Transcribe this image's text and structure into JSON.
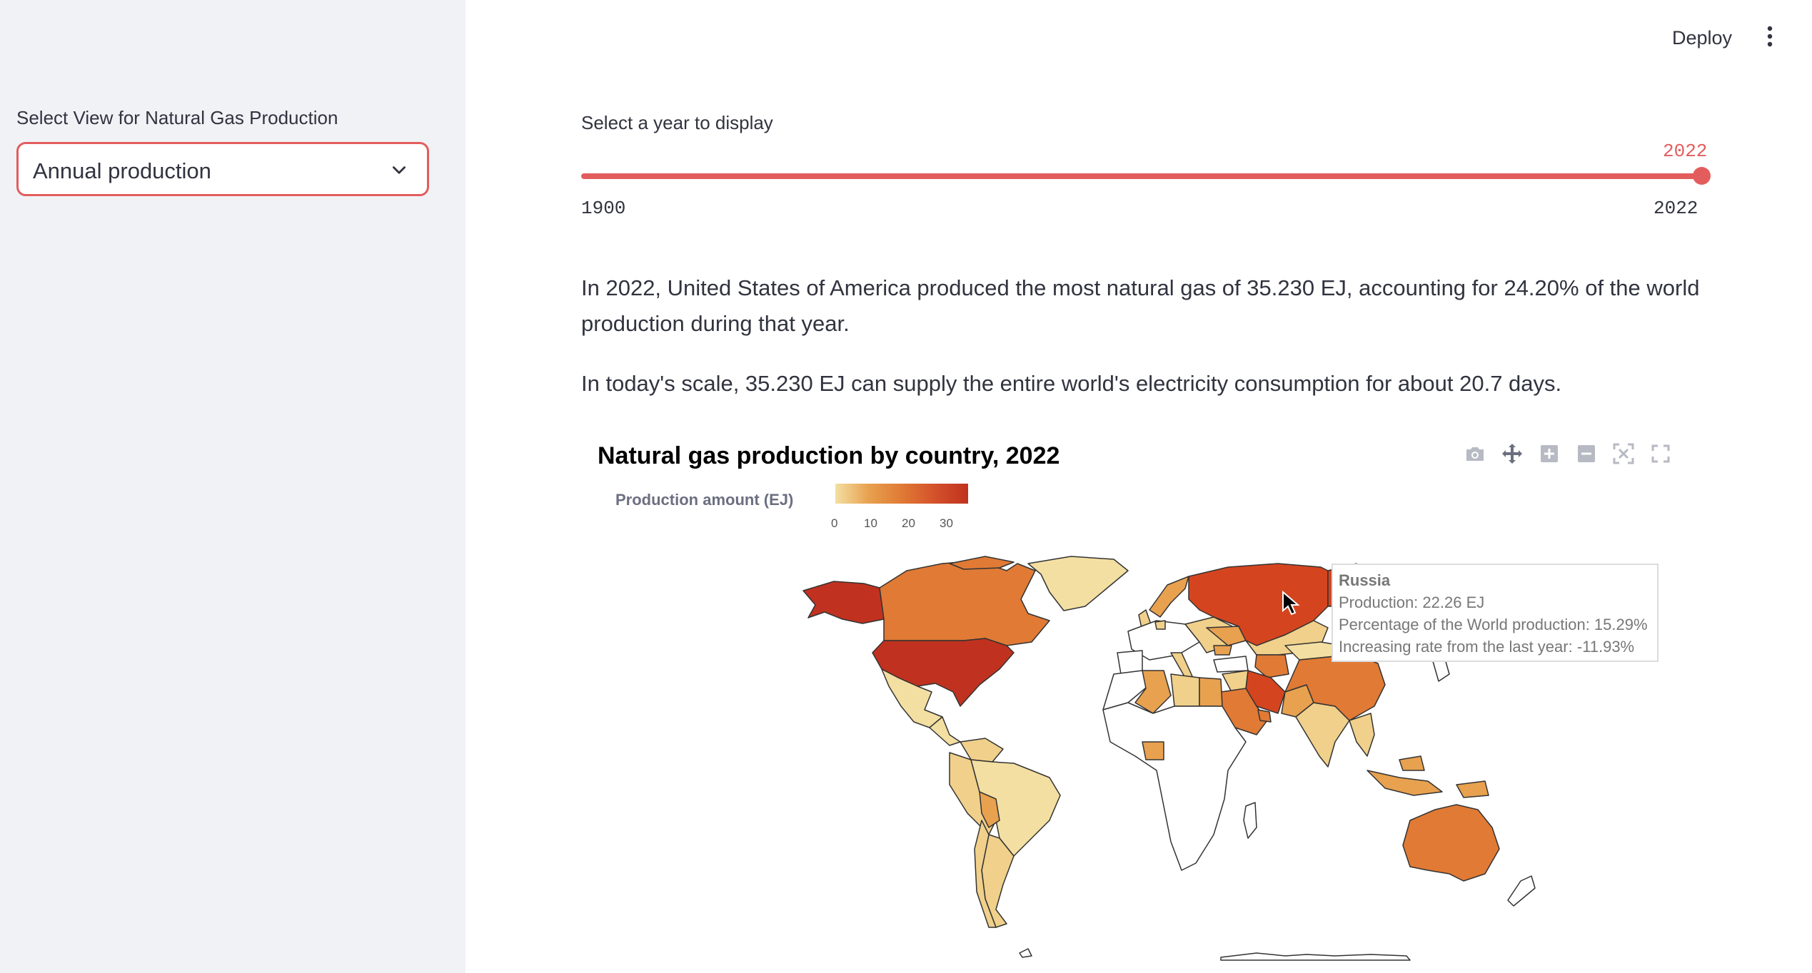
{
  "sidebar": {
    "select_label": "Select View for Natural Gas Production",
    "select_value": "Annual production"
  },
  "header": {
    "deploy_label": "Deploy",
    "menu_icon": "vertical-ellipsis-icon"
  },
  "slider": {
    "label": "Select a year to display",
    "value": "2022",
    "min": "1900",
    "max": "2022",
    "position_fraction": 1.0
  },
  "summary": {
    "paragraph1": "In 2022, United States of America produced the most natural gas of 35.230 EJ, accounting for 24.20% of the world production during that year.",
    "paragraph2": "In today's scale, 35.230 EJ can supply the entire world's electricity consumption for about 20.7 days."
  },
  "chart": {
    "title": "Natural gas production by country, 2022",
    "legend_label": "Production amount (EJ)",
    "colorbar_ticks": [
      "0",
      "10",
      "20",
      "30"
    ],
    "toolbar_icons": [
      "camera-icon",
      "pan-icon",
      "zoom-in-icon",
      "zoom-out-icon",
      "autoscale-icon",
      "reset-icon"
    ]
  },
  "tooltip": {
    "country": "Russia",
    "line1": "Production: 22.26 EJ",
    "line2": "Percentage of the World production: 15.29%",
    "line3": "Increasing rate from the last year: -11.93%"
  },
  "chart_data": {
    "type": "choropleth",
    "title": "Natural gas production by country, 2022",
    "colorbar_title": "Production amount (EJ)",
    "colorbar_range": [
      0,
      35
    ],
    "colorbar_ticks": [
      0,
      10,
      20,
      30
    ],
    "highlighted": {
      "country": "Russia",
      "production_ej": 22.26,
      "world_share_pct": 15.29,
      "yoy_change_pct": -11.93
    },
    "max_country": {
      "country": "United States of America",
      "production_ej": 35.23,
      "world_share_pct": 24.2
    }
  },
  "colors": {
    "accent": "#e35d5d",
    "low": "#f3dfa2",
    "mid": "#e07a35",
    "high": "#c0321f"
  }
}
